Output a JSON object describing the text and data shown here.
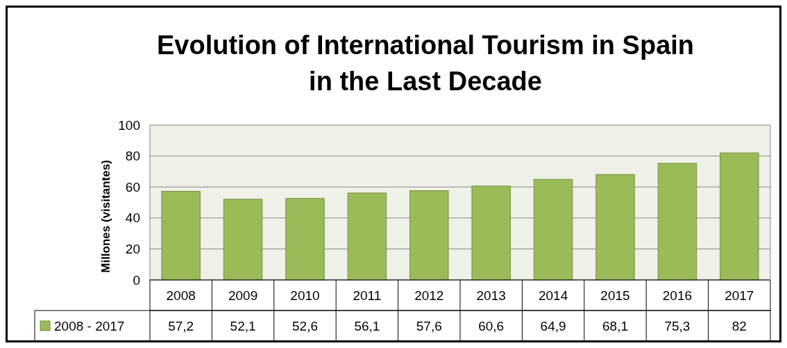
{
  "chart_data": {
    "type": "bar",
    "title": "Evolution of International Tourism in Spain in the Last Decade",
    "ylabel": "Millones (visitantes)",
    "categories": [
      "2008",
      "2009",
      "2010",
      "2011",
      "2012",
      "2013",
      "2014",
      "2015",
      "2016",
      "2017"
    ],
    "series": [
      {
        "name": "2008 - 2017",
        "color": "#9bbb59",
        "values": [
          57.2,
          52.1,
          52.6,
          56.1,
          57.6,
          60.6,
          64.9,
          68.1,
          75.3,
          82
        ],
        "value_labels": [
          "57,2",
          "52,1",
          "52,6",
          "56,1",
          "57,6",
          "60,6",
          "64,9",
          "68,1",
          "75,3",
          "82"
        ]
      }
    ],
    "ylim": [
      0,
      100
    ],
    "yticks": [
      0,
      20,
      40,
      60,
      80,
      100
    ],
    "grid": "y",
    "legend": "bottom"
  }
}
